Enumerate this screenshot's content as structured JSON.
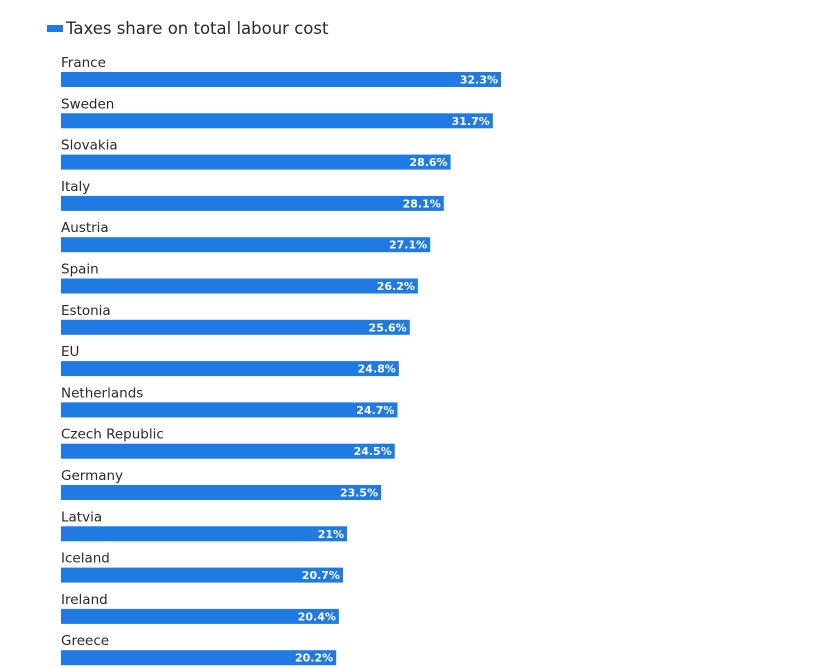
{
  "chart_data": {
    "type": "bar",
    "orientation": "horizontal",
    "categories": [
      "France",
      "Sweden",
      "Slovakia",
      "Italy",
      "Austria",
      "Spain",
      "Estonia",
      "EU",
      "Netherlands",
      "Czech Republic",
      "Germany",
      "Latvia",
      "Iceland",
      "Ireland",
      "Greece"
    ],
    "series": [
      {
        "name": "Taxes share on total labour cost",
        "values": [
          32.3,
          31.7,
          28.6,
          28.1,
          27.1,
          26.2,
          25.6,
          24.8,
          24.7,
          24.5,
          23.5,
          21,
          20.7,
          20.4,
          20.2
        ],
        "labels": [
          "32.3%",
          "31.7%",
          "28.6%",
          "28.1%",
          "27.1%",
          "26.2%",
          "25.6%",
          "24.8%",
          "24.7%",
          "24.5%",
          "23.5%",
          "21%",
          "20.7%",
          "20.4%",
          "20.2%"
        ],
        "color": "#1f7be3"
      }
    ],
    "xlim": [
      0,
      32.3
    ],
    "grid": false,
    "legend": "top-left"
  }
}
